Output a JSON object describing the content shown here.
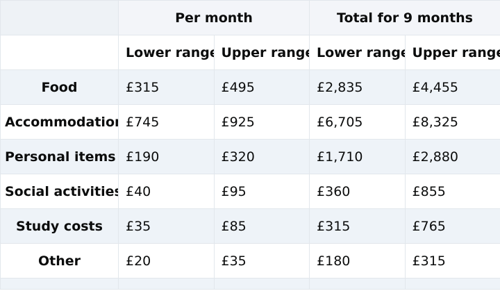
{
  "table": {
    "group_headers": [
      "Per month",
      "Total for 9 months"
    ],
    "sub_headers": [
      "Lower range",
      "Upper range",
      "Lower range",
      "Upper range"
    ],
    "rows": [
      {
        "label": "Food",
        "values": [
          "£315",
          "£495",
          "£2,835",
          "£4,455"
        ]
      },
      {
        "label": "Accommodation",
        "values": [
          "£745",
          "£925",
          "£6,705",
          "£8,325"
        ]
      },
      {
        "label": "Personal items",
        "values": [
          "£190",
          "£320",
          "£1,710",
          "£2,880"
        ]
      },
      {
        "label": "Social activities",
        "values": [
          "£40",
          "£95",
          "£360",
          "£855"
        ]
      },
      {
        "label": "Study costs",
        "values": [
          "£35",
          "£85",
          "£315",
          "£765"
        ]
      },
      {
        "label": "Other",
        "values": [
          "£20",
          "£35",
          "£180",
          "£315"
        ]
      }
    ]
  }
}
